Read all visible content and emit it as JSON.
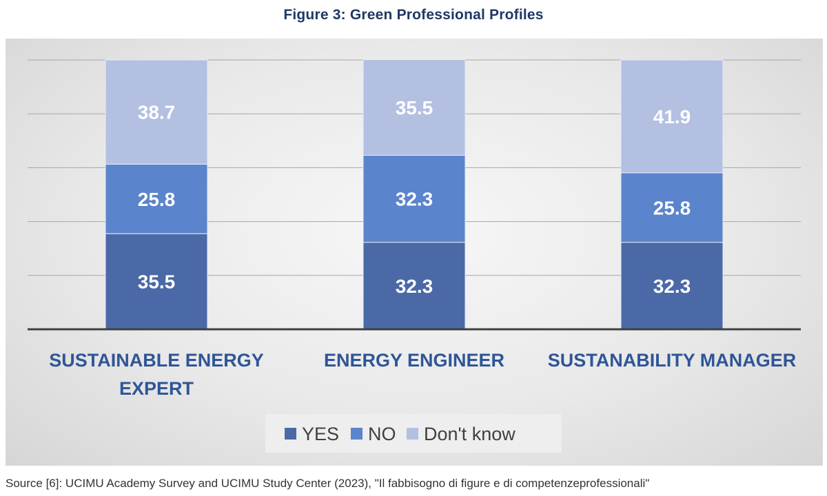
{
  "figure_title": "Figure 3: Green Professional Profiles",
  "source_note": "Source [6]: UCIMU Academy Survey and UCIMU Study Center (2023), \"Il fabbisogno di figure e di competenzeprofessionali\"",
  "chart_data": {
    "type": "bar",
    "stacked": true,
    "title": "Figure 3: Green Professional Profiles",
    "categories": [
      [
        "SUSTAINABLE ENERGY",
        "EXPERT"
      ],
      [
        "ENERGY ENGINEER"
      ],
      [
        "SUSTANABILITY MANAGER"
      ]
    ],
    "series": [
      {
        "name": "YES",
        "color": "#4a69a6",
        "values": [
          35.5,
          32.3,
          32.3
        ]
      },
      {
        "name": "NO",
        "color": "#5a84cc",
        "values": [
          25.8,
          32.3,
          25.8
        ]
      },
      {
        "name": "Don't know",
        "color": "#b3c0e2",
        "values": [
          38.7,
          35.5,
          41.9
        ]
      }
    ],
    "ylim": [
      0,
      100
    ],
    "grid": true,
    "legend_position": "bottom",
    "label_color": "#ffffff",
    "category_label_color": "#2f5597"
  }
}
